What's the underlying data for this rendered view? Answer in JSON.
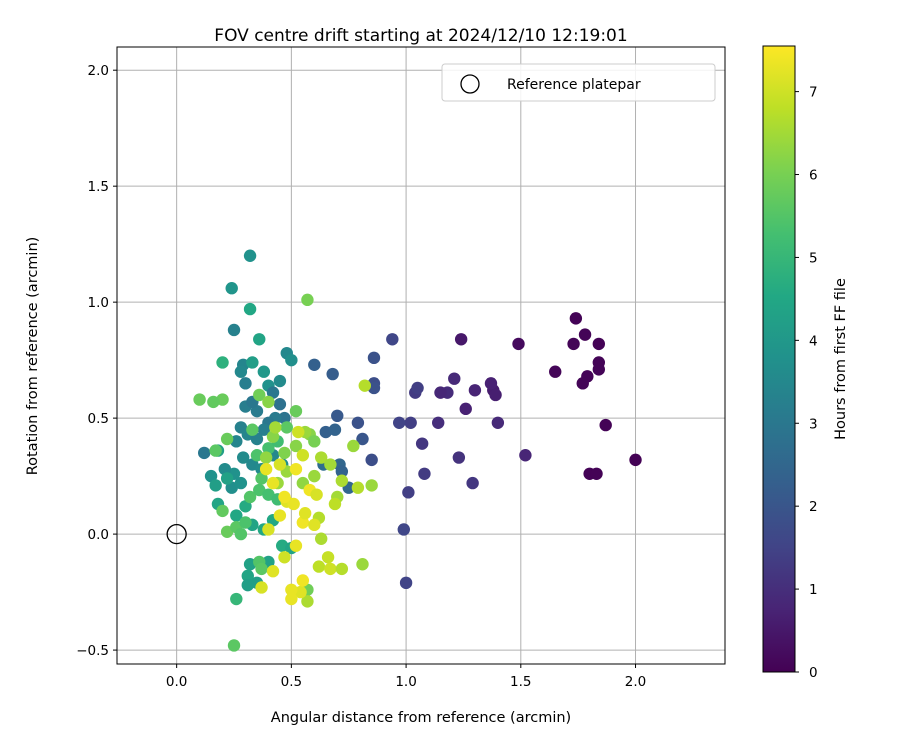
{
  "chart_data": {
    "type": "scatter",
    "title": "FOV centre drift starting at 2024/12/10 12:19:01",
    "xlabel": "Angular distance from reference (arcmin)",
    "ylabel": "Rotation from reference (arcmin)",
    "xlim": [
      -0.26,
      2.39
    ],
    "ylim": [
      -0.56,
      2.1
    ],
    "xticks": [
      0.0,
      0.5,
      1.0,
      1.5,
      2.0
    ],
    "xtick_labels": [
      "0.0",
      "0.5",
      "1.0",
      "1.5",
      "2.0"
    ],
    "yticks": [
      -0.5,
      0.0,
      0.5,
      1.0,
      1.5,
      2.0
    ],
    "ytick_labels": [
      "−0.5",
      "0.0",
      "0.5",
      "1.0",
      "1.5",
      "2.0"
    ],
    "grid": true,
    "legend": {
      "placement": "top-right",
      "entries": [
        "Reference platepar"
      ]
    },
    "reference_point": {
      "label": "Reference platepar",
      "x": 0.0,
      "y": 0.0,
      "marker": "open-circle",
      "edgecolor": "#000000"
    },
    "colorbar": {
      "label": "Hours from first FF file",
      "colormap": "viridis",
      "range": [
        0,
        7.55
      ],
      "ticks": [
        0,
        1,
        2,
        3,
        4,
        5,
        6,
        7
      ],
      "tick_labels": [
        "0",
        "1",
        "2",
        "3",
        "4",
        "5",
        "6",
        "7"
      ]
    },
    "point_color_meaning": "Hours from first FF file",
    "points": [
      [
        1.74,
        0.93,
        0.05
      ],
      [
        1.78,
        0.86,
        0.06
      ],
      [
        1.84,
        0.82,
        0.05
      ],
      [
        1.73,
        0.82,
        0.08
      ],
      [
        1.65,
        0.7,
        0.1
      ],
      [
        1.79,
        0.68,
        0.07
      ],
      [
        1.77,
        0.65,
        0.08
      ],
      [
        1.84,
        0.74,
        0.06
      ],
      [
        1.84,
        0.71,
        0.06
      ],
      [
        1.87,
        0.47,
        0.04
      ],
      [
        1.8,
        0.26,
        0.05
      ],
      [
        1.83,
        0.26,
        0.04
      ],
      [
        2.0,
        0.32,
        0.02
      ],
      [
        1.49,
        0.82,
        0.2
      ],
      [
        1.52,
        0.34,
        0.8
      ],
      [
        1.24,
        0.84,
        0.5
      ],
      [
        1.38,
        0.62,
        0.6
      ],
      [
        1.37,
        0.65,
        0.7
      ],
      [
        1.39,
        0.6,
        0.65
      ],
      [
        1.3,
        0.62,
        0.75
      ],
      [
        1.21,
        0.67,
        0.9
      ],
      [
        1.18,
        0.61,
        0.95
      ],
      [
        1.15,
        0.61,
        0.85
      ],
      [
        1.26,
        0.54,
        0.7
      ],
      [
        1.4,
        0.48,
        0.9
      ],
      [
        1.14,
        0.48,
        1.0
      ],
      [
        1.23,
        0.33,
        1.1
      ],
      [
        1.29,
        0.22,
        1.2
      ],
      [
        1.08,
        0.26,
        1.3
      ],
      [
        1.07,
        0.39,
        1.2
      ],
      [
        1.02,
        0.48,
        1.4
      ],
      [
        1.04,
        0.61,
        1.3
      ],
      [
        1.05,
        0.63,
        1.4
      ],
      [
        0.94,
        0.84,
        1.6
      ],
      [
        0.97,
        0.48,
        1.5
      ],
      [
        1.01,
        0.18,
        1.4
      ],
      [
        0.99,
        0.02,
        1.6
      ],
      [
        1.0,
        -0.21,
        1.5
      ],
      [
        0.86,
        0.76,
        1.9
      ],
      [
        0.86,
        0.65,
        1.8
      ],
      [
        0.86,
        0.63,
        1.9
      ],
      [
        0.85,
        0.32,
        1.8
      ],
      [
        0.79,
        0.48,
        1.9
      ],
      [
        0.81,
        0.41,
        2.0
      ],
      [
        0.68,
        0.69,
        2.2
      ],
      [
        0.6,
        0.73,
        2.3
      ],
      [
        0.7,
        0.51,
        2.1
      ],
      [
        0.65,
        0.44,
        2.3
      ],
      [
        0.69,
        0.45,
        2.4
      ],
      [
        0.71,
        0.3,
        2.5
      ],
      [
        0.72,
        0.27,
        2.4
      ],
      [
        0.75,
        0.2,
        2.5
      ],
      [
        0.64,
        0.3,
        2.7
      ],
      [
        0.48,
        0.78,
        3.5
      ],
      [
        0.5,
        0.75,
        3.7
      ],
      [
        0.45,
        0.66,
        3.6
      ],
      [
        0.4,
        0.64,
        3.8
      ],
      [
        0.32,
        1.2,
        3.8
      ],
      [
        0.24,
        1.06,
        3.9
      ],
      [
        0.25,
        0.88,
        3.3
      ],
      [
        0.29,
        0.73,
        3.4
      ],
      [
        0.28,
        0.7,
        3.5
      ],
      [
        0.3,
        0.65,
        3.2
      ],
      [
        0.32,
        0.97,
        4.5
      ],
      [
        0.36,
        0.84,
        4.4
      ],
      [
        0.33,
        0.74,
        4.2
      ],
      [
        0.38,
        0.7,
        4.0
      ],
      [
        0.42,
        0.61,
        3.0
      ],
      [
        0.45,
        0.56,
        2.8
      ],
      [
        0.47,
        0.5,
        2.9
      ],
      [
        0.43,
        0.5,
        3.1
      ],
      [
        0.4,
        0.48,
        3.0
      ],
      [
        0.35,
        0.53,
        3.1
      ],
      [
        0.3,
        0.55,
        3.2
      ],
      [
        0.33,
        0.57,
        3.0
      ],
      [
        0.28,
        0.46,
        3.3
      ],
      [
        0.31,
        0.43,
        3.4
      ],
      [
        0.35,
        0.41,
        3.3
      ],
      [
        0.38,
        0.45,
        3.2
      ],
      [
        0.26,
        0.4,
        3.4
      ],
      [
        0.29,
        0.33,
        3.6
      ],
      [
        0.33,
        0.3,
        3.5
      ],
      [
        0.37,
        0.28,
        3.6
      ],
      [
        0.42,
        0.34,
        3.5
      ],
      [
        0.46,
        0.3,
        3.7
      ],
      [
        0.25,
        0.26,
        3.8
      ],
      [
        0.21,
        0.28,
        3.6
      ],
      [
        0.24,
        0.2,
        3.7
      ],
      [
        0.28,
        0.22,
        3.8
      ],
      [
        0.12,
        0.35,
        3.0
      ],
      [
        0.15,
        0.25,
        3.8
      ],
      [
        0.18,
        0.36,
        4.2
      ],
      [
        0.22,
        0.24,
        4.3
      ],
      [
        0.17,
        0.21,
        4.2
      ],
      [
        0.18,
        0.13,
        4.4
      ],
      [
        0.26,
        0.08,
        4.5
      ],
      [
        0.3,
        0.12,
        4.6
      ],
      [
        0.33,
        0.04,
        4.4
      ],
      [
        0.38,
        0.02,
        4.5
      ],
      [
        0.42,
        0.06,
        4.5
      ],
      [
        0.46,
        -0.05,
        4.6
      ],
      [
        0.5,
        -0.06,
        4.4
      ],
      [
        0.4,
        -0.12,
        4.3
      ],
      [
        0.32,
        -0.13,
        4.3
      ],
      [
        0.31,
        -0.18,
        4.4
      ],
      [
        0.35,
        -0.21,
        4.2
      ],
      [
        0.31,
        -0.22,
        4.2
      ],
      [
        0.26,
        -0.28,
        5.0
      ],
      [
        0.25,
        -0.48,
        5.6
      ],
      [
        0.2,
        0.74,
        4.8
      ],
      [
        0.2,
        0.58,
        5.8
      ],
      [
        0.16,
        0.57,
        5.7
      ],
      [
        0.1,
        0.58,
        5.8
      ],
      [
        0.17,
        0.36,
        5.6
      ],
      [
        0.22,
        0.41,
        5.8
      ],
      [
        0.2,
        0.1,
        5.7
      ],
      [
        0.22,
        0.01,
        5.8
      ],
      [
        0.26,
        0.03,
        5.6
      ],
      [
        0.28,
        0.0,
        5.5
      ],
      [
        0.3,
        0.05,
        5.4
      ],
      [
        0.32,
        0.16,
        5.5
      ],
      [
        0.36,
        0.19,
        5.4
      ],
      [
        0.4,
        0.17,
        5.3
      ],
      [
        0.44,
        0.15,
        5.2
      ],
      [
        0.37,
        0.24,
        5.5
      ],
      [
        0.35,
        0.34,
        5.4
      ],
      [
        0.4,
        0.37,
        5.3
      ],
      [
        0.44,
        0.4,
        5.2
      ],
      [
        0.48,
        0.46,
        5.6
      ],
      [
        0.52,
        0.53,
        5.8
      ],
      [
        0.36,
        0.6,
        5.9
      ],
      [
        0.33,
        0.45,
        5.6
      ],
      [
        0.36,
        -0.12,
        5.5
      ],
      [
        0.37,
        -0.15,
        5.6
      ],
      [
        0.57,
        -0.24,
        5.9
      ],
      [
        0.57,
        1.01,
        6.0
      ],
      [
        0.4,
        0.57,
        6.2
      ],
      [
        0.58,
        0.43,
        6.2
      ],
      [
        0.6,
        0.4,
        6.0
      ],
      [
        0.52,
        0.38,
        6.2
      ],
      [
        0.47,
        0.35,
        6.1
      ],
      [
        0.48,
        0.27,
        6.4
      ],
      [
        0.55,
        0.22,
        6.3
      ],
      [
        0.6,
        0.25,
        6.4
      ],
      [
        0.44,
        0.22,
        6.4
      ],
      [
        0.39,
        0.33,
        6.3
      ],
      [
        0.42,
        0.42,
        6.2
      ],
      [
        0.43,
        0.46,
        6.5
      ],
      [
        0.56,
        0.44,
        6.4
      ],
      [
        0.63,
        0.33,
        6.6
      ],
      [
        0.67,
        0.3,
        6.5
      ],
      [
        0.72,
        0.23,
        6.6
      ],
      [
        0.7,
        0.16,
        6.5
      ],
      [
        0.77,
        0.38,
        6.4
      ],
      [
        0.82,
        0.64,
        6.7
      ],
      [
        0.85,
        0.21,
        6.4
      ],
      [
        0.79,
        0.2,
        6.7
      ],
      [
        0.69,
        0.13,
        6.8
      ],
      [
        0.62,
        0.07,
        6.7
      ],
      [
        0.63,
        -0.02,
        6.6
      ],
      [
        0.66,
        -0.1,
        6.9
      ],
      [
        0.62,
        -0.14,
        6.8
      ],
      [
        0.67,
        -0.15,
        7.0
      ],
      [
        0.72,
        -0.15,
        6.7
      ],
      [
        0.81,
        -0.13,
        6.4
      ],
      [
        0.57,
        -0.29,
        6.6
      ],
      [
        0.54,
        -0.25,
        7.2
      ],
      [
        0.5,
        -0.24,
        7.3
      ],
      [
        0.5,
        -0.28,
        7.3
      ],
      [
        0.55,
        -0.2,
        7.4
      ],
      [
        0.37,
        -0.23,
        7.1
      ],
      [
        0.42,
        -0.16,
        7.2
      ],
      [
        0.47,
        -0.1,
        7.0
      ],
      [
        0.52,
        -0.05,
        7.3
      ],
      [
        0.55,
        0.05,
        7.4
      ],
      [
        0.6,
        0.04,
        7.2
      ],
      [
        0.4,
        0.02,
        7.1
      ],
      [
        0.45,
        0.08,
        7.3
      ],
      [
        0.48,
        0.14,
        7.2
      ],
      [
        0.42,
        0.22,
        7.3
      ],
      [
        0.39,
        0.28,
        7.3
      ],
      [
        0.45,
        0.3,
        7.1
      ],
      [
        0.55,
        0.34,
        7.0
      ],
      [
        0.52,
        0.28,
        7.4
      ],
      [
        0.58,
        0.19,
        7.4
      ],
      [
        0.51,
        0.13,
        7.3
      ],
      [
        0.56,
        0.09,
        7.2
      ],
      [
        0.61,
        0.17,
        7.1
      ],
      [
        0.53,
        0.44,
        7.0
      ],
      [
        0.47,
        0.16,
        7.4
      ]
    ]
  }
}
